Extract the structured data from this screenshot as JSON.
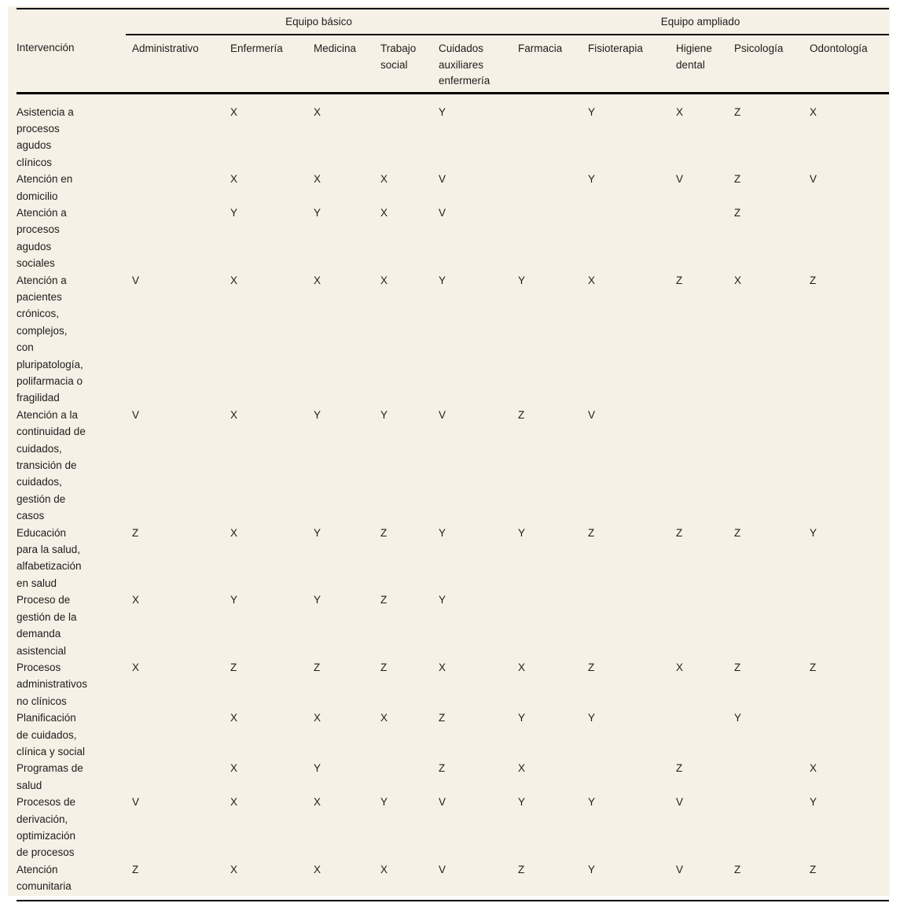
{
  "table": {
    "row_header_label": "Intervención",
    "groups": [
      {
        "label": "Equipo básico"
      },
      {
        "label": "Equipo ampliado"
      }
    ],
    "columns": [
      "Administrativo",
      "Enfermería",
      "Medicina",
      "Trabajo social",
      "Cuidados auxiliares enfermería",
      "Farmacia",
      "Fisioterapia",
      "Higiene dental",
      "Psicología",
      "Odontología"
    ],
    "rows": [
      {
        "label": "Asistencia a procesos agudos clínicos",
        "values": [
          "",
          "X",
          "X",
          "",
          "Y",
          "",
          "Y",
          "X",
          "Z",
          "X"
        ]
      },
      {
        "label": "Atención en domicilio",
        "values": [
          "",
          "X",
          "X",
          "X",
          "V",
          "",
          "Y",
          "V",
          "Z",
          "V"
        ]
      },
      {
        "label": "Atención a procesos agudos sociales",
        "values": [
          "",
          "Y",
          "Y",
          "X",
          "V",
          "",
          "",
          "",
          "Z",
          ""
        ]
      },
      {
        "label": "Atención a pacientes crónicos, complejos, con pluripatología, polifarmacia o fragilidad",
        "values": [
          "V",
          "X",
          "X",
          "X",
          "Y",
          "Y",
          "X",
          "Z",
          "X",
          "Z"
        ]
      },
      {
        "label": "Atención a la continuidad de cuidados, transición de cuidados, gestión de casos",
        "values": [
          "V",
          "X",
          "Y",
          "Y",
          "V",
          "Z",
          "V",
          "",
          "",
          ""
        ]
      },
      {
        "label": "Educación para la salud, alfabetización en salud",
        "values": [
          "Z",
          "X",
          "Y",
          "Z",
          "Y",
          "Y",
          "Z",
          "Z",
          "Z",
          "Y"
        ]
      },
      {
        "label": "Proceso de gestión de la demanda asistencial",
        "values": [
          "X",
          "Y",
          "Y",
          "Z",
          "Y",
          "",
          "",
          "",
          "",
          ""
        ]
      },
      {
        "label": "Procesos administrativos no clínicos",
        "values": [
          "X",
          "Z",
          "Z",
          "Z",
          "X",
          "X",
          "Z",
          "X",
          "Z",
          "Z"
        ]
      },
      {
        "label": "Planificación de cuidados, clínica y social",
        "values": [
          "",
          "X",
          "X",
          "X",
          "Z",
          "Y",
          "Y",
          "",
          "Y",
          ""
        ]
      },
      {
        "label": "Programas de salud",
        "values": [
          "",
          "X",
          "Y",
          "",
          "Z",
          "X",
          "",
          "Z",
          "",
          "X"
        ]
      },
      {
        "label": "Procesos de derivación, optimización de procesos",
        "values": [
          "V",
          "X",
          "X",
          "Y",
          "V",
          "Y",
          "Y",
          "V",
          "",
          "Y"
        ]
      },
      {
        "label": "Atención comunitaria",
        "values": [
          "Z",
          "X",
          "X",
          "X",
          "V",
          "Z",
          "Y",
          "V",
          "Z",
          "Z"
        ]
      }
    ],
    "colors": {
      "sheet_background": "#f6f1e6",
      "rule": "#000000",
      "text": "#1d1d1d"
    }
  }
}
